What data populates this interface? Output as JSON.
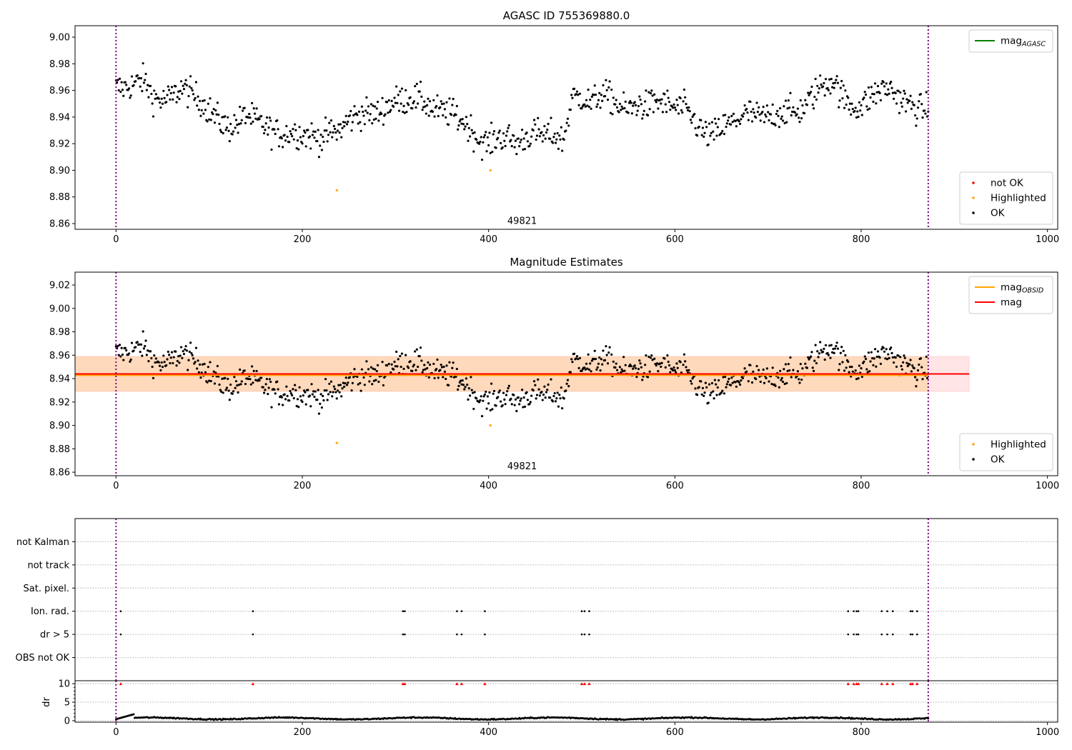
{
  "chart_data": [
    {
      "type": "scatter",
      "title": "AGASC ID 755369880.0",
      "xlim": [
        -44,
        1011
      ],
      "ylim": [
        8.8557,
        9.0086
      ],
      "xticks": [
        0,
        200,
        400,
        600,
        800,
        1000
      ],
      "yticks": [
        8.86,
        8.88,
        8.9,
        8.92,
        8.94,
        8.96,
        8.98,
        9.0
      ],
      "annotation": {
        "text": "49821",
        "x": 436,
        "y": 8.862
      },
      "vlines": [
        0,
        872
      ],
      "legend_upper": {
        "placement": "top-right",
        "entries": [
          {
            "label": "mag",
            "sub": "AGASC",
            "color": "#008000"
          }
        ]
      },
      "legend_lower": {
        "placement": "bottom-right",
        "entries": [
          {
            "label": "not OK",
            "color": "#ff0000"
          },
          {
            "label": "Highlighted",
            "color": "#ffa500"
          },
          {
            "label": "OK",
            "color": "#000000"
          }
        ]
      }
    },
    {
      "type": "scatter",
      "title": "Magnitude Estimates",
      "xlim": [
        -44,
        1011
      ],
      "ylim": [
        8.857,
        9.031
      ],
      "xticks": [
        0,
        200,
        400,
        600,
        800,
        1000
      ],
      "yticks": [
        8.86,
        8.88,
        8.9,
        8.92,
        8.94,
        8.96,
        8.98,
        9.0,
        9.02
      ],
      "annotation": {
        "text": "49821",
        "x": 436,
        "y": 8.865
      },
      "vlines": [
        0,
        872
      ],
      "mag": {
        "value": 8.944,
        "band": [
          8.929,
          8.959
        ],
        "x_range": [
          -44,
          916
        ],
        "color": "#ff0000"
      },
      "mag_obsid": {
        "value": 8.943,
        "band": [
          8.929,
          8.959
        ],
        "x_range": [
          -44,
          872
        ],
        "color": "#ffa500"
      },
      "legend_upper": {
        "placement": "top-right",
        "entries": [
          {
            "label": "mag",
            "sub": "OBSID",
            "color": "#ffa500"
          },
          {
            "label": "mag",
            "sub": "",
            "color": "#ff0000"
          }
        ]
      },
      "legend_lower": {
        "placement": "bottom-right",
        "entries": [
          {
            "label": "Highlighted",
            "color": "#ffa500"
          },
          {
            "label": "OK",
            "color": "#000000"
          }
        ]
      }
    },
    {
      "type": "scatter",
      "title": "",
      "categories": [
        "OBS not OK",
        "dr > 5",
        "Ion. rad.",
        "Sat. pixel.",
        "not track",
        "not Kalman"
      ],
      "flag_x": {
        "Ion. rad.": [
          5,
          147,
          308,
          310,
          366,
          371,
          396,
          500,
          503,
          508,
          786,
          792,
          795,
          797,
          822,
          828,
          834,
          853,
          855,
          860
        ],
        "dr > 5": [
          5,
          147,
          308,
          310,
          366,
          371,
          396,
          500,
          503,
          508,
          786,
          792,
          795,
          797,
          822,
          828,
          834,
          853,
          855,
          860
        ]
      },
      "xlim": [
        -44,
        1011
      ],
      "vlines": [
        0,
        872
      ]
    },
    {
      "type": "scatter",
      "ylabel": "dr",
      "ylim": [
        -0.4,
        10.8
      ],
      "yticks": [
        0,
        5,
        10
      ],
      "xticks": [
        0,
        200,
        400,
        600,
        800,
        1000
      ],
      "xlim": [
        -44,
        1011
      ],
      "clipped_value": 10,
      "vlines": [
        0,
        872
      ]
    }
  ],
  "series": {
    "n_points": 873,
    "bin_width": 10,
    "noise": 0.011,
    "mag_bins": [
      8.962,
      8.962,
      8.965,
      8.968,
      8.955,
      8.952,
      8.955,
      8.962,
      8.958,
      8.953,
      8.945,
      8.938,
      8.932,
      8.935,
      8.942,
      8.937,
      8.933,
      8.928,
      8.927,
      8.929,
      8.927,
      8.926,
      8.924,
      8.928,
      8.93,
      8.938,
      8.942,
      8.943,
      8.942,
      8.948,
      8.952,
      8.953,
      8.955,
      8.952,
      8.946,
      8.944,
      8.943,
      8.938,
      8.932,
      8.922,
      8.92,
      8.925,
      8.925,
      8.92,
      8.925,
      8.928,
      8.926,
      8.927,
      8.922,
      8.955,
      8.955,
      8.95,
      8.957,
      8.955,
      8.948,
      8.945,
      8.95,
      8.948,
      8.952,
      8.95,
      8.947,
      8.947,
      8.938,
      8.928,
      8.926,
      8.932,
      8.935,
      8.94,
      8.943,
      8.94,
      8.94,
      8.943,
      8.945,
      8.943,
      8.948,
      8.958,
      8.965,
      8.968,
      8.955,
      8.948,
      8.948,
      8.955,
      8.96,
      8.962,
      8.955,
      8.95,
      8.946,
      8.946
    ],
    "highlighted": [
      {
        "x": 237,
        "y": 8.885
      },
      {
        "x": 402,
        "y": 8.9
      }
    ],
    "dr_typical": 0.6
  }
}
